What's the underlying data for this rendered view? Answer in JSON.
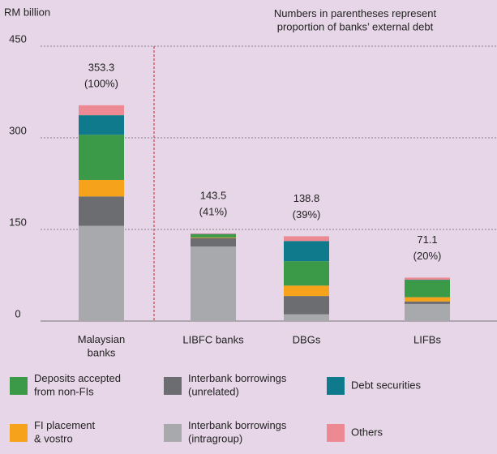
{
  "chart_data": {
    "type": "stacked_bar",
    "y_label": "RM billion",
    "annotation": "Numbers in parentheses represent\nproportion of banks’ external debt",
    "categories": [
      "Malaysian\nbanks",
      "LIBFC banks",
      "DBGs",
      "LIFBs"
    ],
    "series": [
      {
        "name": "Interbank borrowings\n(intragroup)",
        "color": "#a8a9ad",
        "values": [
          156,
          122,
          11,
          28
        ]
      },
      {
        "name": "Interbank borrowings\n(unrelated)",
        "color": "#6c6d70",
        "values": [
          48,
          14,
          30,
          4
        ]
      },
      {
        "name": "FI placement\n& vostro",
        "color": "#f7a21b",
        "values": [
          27,
          1,
          17,
          7
        ]
      },
      {
        "name": "Deposits accepted\nfrom non-FIs",
        "color": "#3b9a47",
        "values": [
          74,
          5,
          40,
          28
        ]
      },
      {
        "name": "Debt securities",
        "color": "#0f7a8b",
        "values": [
          32,
          0.5,
          33,
          0.6
        ]
      },
      {
        "name": "Others",
        "color": "#ec8993",
        "values": [
          16.3,
          1,
          7.8,
          3.5
        ]
      }
    ],
    "totals": [
      353.3,
      143.5,
      138.8,
      71.1
    ],
    "shares": [
      100,
      41,
      39,
      20
    ],
    "share_labels": [
      "(100%)",
      "(41%)",
      "(39%)",
      "(20%)"
    ],
    "ylim": [
      0,
      450
    ],
    "yticks": [
      0,
      150,
      300,
      450
    ],
    "grid": true
  }
}
